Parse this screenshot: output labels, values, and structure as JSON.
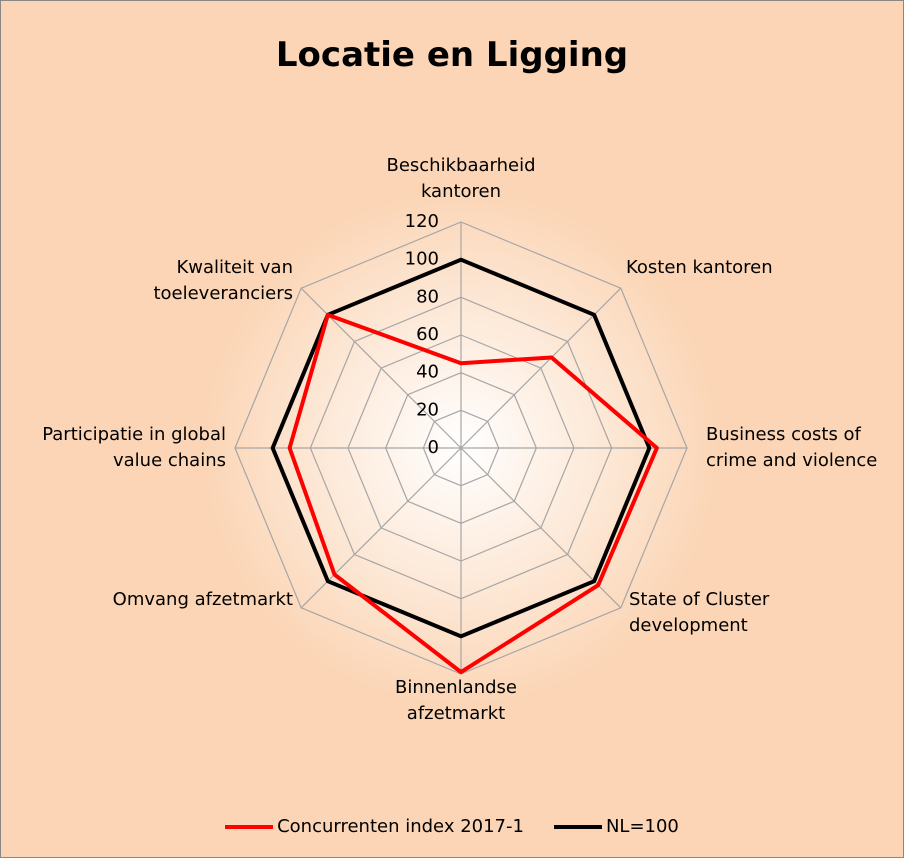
{
  "chart_data": {
    "type": "radar",
    "title": "Locatie en Ligging",
    "categories": [
      "Beschikbaarheid kantoren",
      "Kosten kantoren",
      "Business costs of crime and violence",
      "State of Cluster development",
      "Binnenlandse afzetmarkt",
      "Omvang afzetmarkt",
      "Participatie in global value chains",
      "Kwaliteit van toeleveranciers"
    ],
    "series": [
      {
        "name": "Concurrenten index 2017-1",
        "color": "#ff0000",
        "values": [
          45,
          68,
          104,
          103,
          119,
          95,
          91,
          100
        ]
      },
      {
        "name": "NL=100",
        "color": "#000000",
        "values": [
          100,
          100,
          100,
          100,
          100,
          100,
          100,
          100
        ]
      }
    ],
    "ylim": [
      0,
      120
    ],
    "yticks": [
      0,
      20,
      40,
      60,
      80,
      100,
      120
    ],
    "grid": true
  }
}
